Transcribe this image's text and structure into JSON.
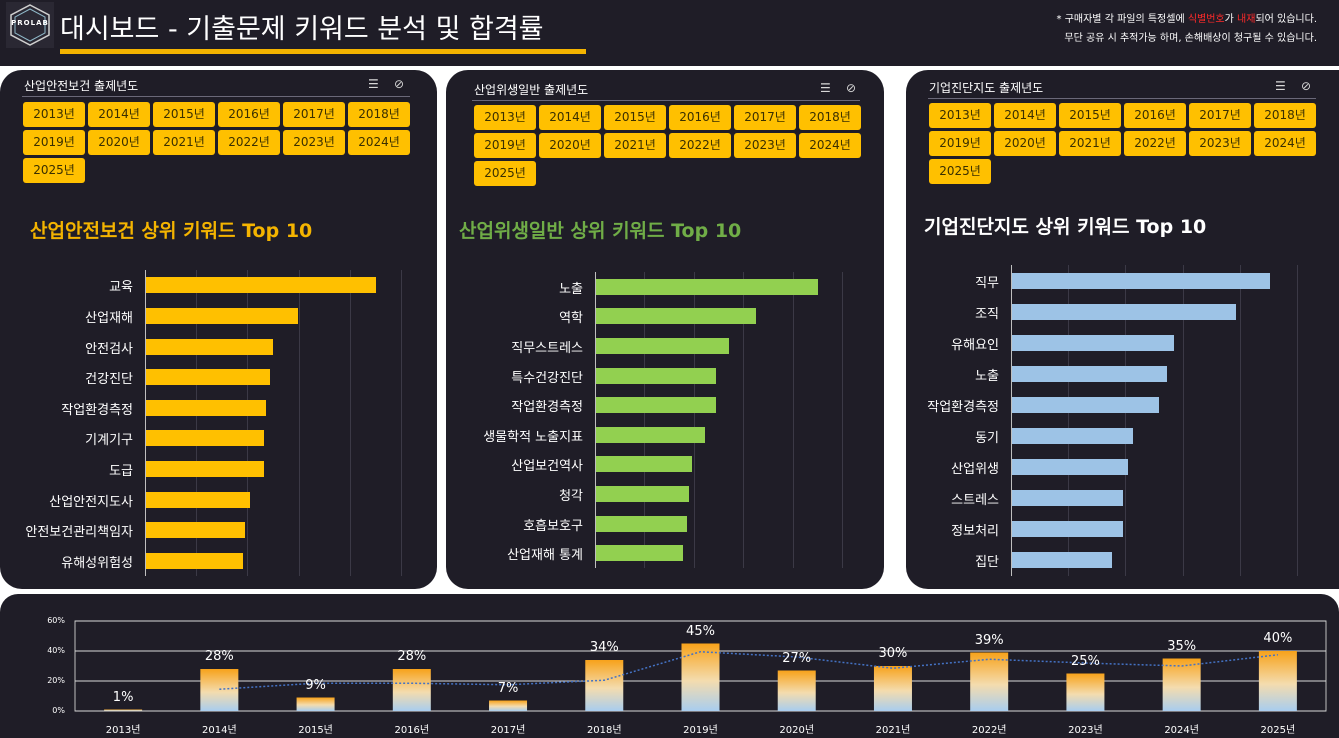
{
  "header": {
    "logo_text": "PROLAB",
    "title": "대시보드 - 기출문제 키워드 분석 및 합격률",
    "notice_line1_a": "* 구매자별 각 파일의 특정셀에 ",
    "notice_line1_b": "식별번호",
    "notice_line1_c": "가 ",
    "notice_line1_d": "내재",
    "notice_line1_e": "되어 있습니다.",
    "notice_line2": "무단 공유 시 추적가능 하며, 손해배상이 청구될 수 있습니다."
  },
  "colors": {
    "background": "#1f1d27",
    "accent_yellow": "#ffc000",
    "green": "#92d050",
    "blue": "#9dc3e6"
  },
  "years": [
    "2013년",
    "2014년",
    "2015년",
    "2016년",
    "2017년",
    "2018년",
    "2019년",
    "2020년",
    "2021년",
    "2022년",
    "2023년",
    "2024년",
    "2025년"
  ],
  "panels": [
    {
      "filter_title": "산업안전보건 출제년도",
      "chart_title": "산업안전보건 상위 키워드 Top 10",
      "keywords": [
        "교육",
        "산업재해",
        "안전검사",
        "건강진단",
        "작업환경측정",
        "기계기구",
        "도급",
        "산업안전지도사",
        "안전보건관리책임자",
        "유해성위험성"
      ],
      "values": [
        100,
        66,
        55,
        54,
        52,
        51,
        51,
        45,
        43,
        42
      ]
    },
    {
      "filter_title": "산업위생일반 출제년도",
      "chart_title": "산업위생일반 상위 키워드 Top 10",
      "keywords": [
        "노출",
        "역학",
        "직무스트레스",
        "특수건강진단",
        "작업환경측정",
        "생물학적 노출지표",
        "산업보건역사",
        "청각",
        "호흡보호구",
        "산업재해 통계"
      ],
      "values": [
        100,
        72,
        60,
        54,
        54,
        49,
        43,
        42,
        41,
        39
      ]
    },
    {
      "filter_title": "기업진단지도 출제년도",
      "chart_title": "기업진단지도 상위 키워드 Top 10",
      "keywords": [
        "직무",
        "조직",
        "유해요인",
        "노출",
        "작업환경측정",
        "동기",
        "산업위생",
        "스트레스",
        "정보처리",
        "집단"
      ],
      "values": [
        100,
        87,
        63,
        60,
        57,
        47,
        45,
        43,
        43,
        39
      ]
    }
  ],
  "chart_data": {
    "type": "bar",
    "categories": [
      "2013년",
      "2014년",
      "2015년",
      "2016년",
      "2017년",
      "2018년",
      "2019년",
      "2020년",
      "2021년",
      "2022년",
      "2023년",
      "2024년",
      "2025년"
    ],
    "values": [
      1,
      28,
      9,
      28,
      7,
      34,
      45,
      27,
      30,
      39,
      25,
      35,
      40
    ],
    "value_labels": [
      "1%",
      "28%",
      "9%",
      "28%",
      "7%",
      "34%",
      "45%",
      "27%",
      "30%",
      "39%",
      "25%",
      "35%",
      "40%"
    ],
    "trendline": true,
    "ylim": [
      0,
      60
    ],
    "yticks": [
      "0%",
      "20%",
      "40%",
      "60%"
    ],
    "grid": true
  }
}
